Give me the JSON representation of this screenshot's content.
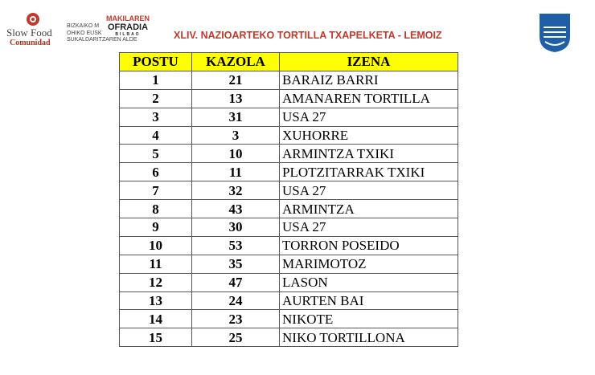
{
  "header": {
    "logo_left": {
      "name": "Slow Food",
      "sub": "Comunidad"
    },
    "logo_mid": {
      "lines": [
        "BIZKAIKO M",
        "OHIKO EUSK",
        "SUKALDARITZAREN ALDE"
      ]
    },
    "logo_ofradia": {
      "top": "MAKILAREN",
      "main": "OFRADIA",
      "city": "BILBAO"
    },
    "title": "XLIV. NAZIOARTEKO TORTILLA TXAPELKETA - LEMOIZ"
  },
  "table": {
    "columns": [
      "POSTU",
      "KAZOLA",
      "IZENA"
    ],
    "rows": [
      [
        1,
        21,
        "BARAIZ BARRI"
      ],
      [
        2,
        13,
        "AMANAREN TORTILLA"
      ],
      [
        3,
        31,
        "USA 27"
      ],
      [
        4,
        3,
        "XUHORRE"
      ],
      [
        5,
        10,
        "ARMINTZA TXIKI"
      ],
      [
        6,
        11,
        "PLOTZITARRAK TXIKI"
      ],
      [
        7,
        32,
        "USA 27"
      ],
      [
        8,
        43,
        "ARMINTZA"
      ],
      [
        9,
        30,
        "USA 27"
      ],
      [
        10,
        53,
        "TORRON POSEIDO"
      ],
      [
        11,
        35,
        "MARIMOTOZ"
      ],
      [
        12,
        47,
        "LASON"
      ],
      [
        13,
        24,
        "AURTEN BAI"
      ],
      [
        14,
        23,
        "NIKOTE"
      ],
      [
        15,
        25,
        "NIKO TORTILLONA"
      ]
    ]
  }
}
